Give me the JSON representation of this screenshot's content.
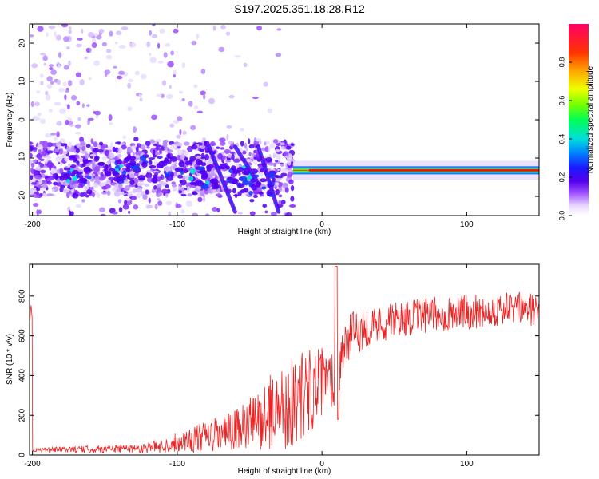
{
  "title": "S197.2025.351.18.28.R12",
  "colors": {
    "snr_line": "#ee2222",
    "axis": "#000000",
    "background": "#ffffff"
  },
  "chart_data": [
    {
      "type": "heatmap",
      "xlabel": "Height of straight line (km)",
      "ylabel": "Frequency (Hz)",
      "xlim": [
        -202,
        150
      ],
      "ylim": [
        -25,
        25
      ],
      "x_ticks": [
        -200,
        -100,
        0,
        100
      ],
      "y_ticks": [
        -20,
        -10,
        0,
        10,
        20
      ],
      "colorbar": {
        "label": "Normalized spectral amplitude",
        "range": [
          0,
          1
        ],
        "ticks": [
          0.0,
          0.2,
          0.4,
          0.6,
          0.8
        ],
        "tick_labels": [
          "0.0",
          "0.2",
          "0.4",
          "0.6",
          "0.8"
        ]
      },
      "features": {
        "carrier_band": {
          "x_range": [
            -20,
            150
          ],
          "frequency_hz": -13.2,
          "peak_amplitude": 1.0
        },
        "scatter_cloud": {
          "x_range": [
            -202,
            -20
          ],
          "frequency_range_hz": [
            -25,
            25
          ],
          "amplitude": 0.2
        },
        "streaks": [
          {
            "x_start": -78,
            "x_end": -60,
            "f_start": -7,
            "f_end": -24
          },
          {
            "x_start": -60,
            "x_end": -45,
            "f_start": -7,
            "f_end": -16
          },
          {
            "x_start": -44,
            "x_end": -30,
            "f_start": -7,
            "f_end": -24
          }
        ]
      }
    },
    {
      "type": "line",
      "xlabel": "Height of straight line (km)",
      "ylabel": "SNR (10 * v/v)",
      "xlim": [
        -202,
        150
      ],
      "ylim": [
        0,
        960
      ],
      "x_ticks": [
        -200,
        -100,
        0,
        100
      ],
      "y_ticks": [
        0,
        200,
        400,
        600,
        800
      ],
      "series": [
        {
          "name": "SNR",
          "x": [
            -200,
            -175,
            -150,
            -125,
            -110,
            -100,
            -80,
            -60,
            -45,
            -35,
            -25,
            -20,
            -15,
            -10,
            -5,
            0,
            5,
            9,
            10,
            11,
            13,
            20,
            30,
            40,
            50,
            60,
            70,
            80,
            90,
            100,
            110,
            120,
            130,
            140,
            150
          ],
          "y": [
            25,
            28,
            30,
            35,
            45,
            65,
            90,
            120,
            170,
            220,
            250,
            270,
            300,
            320,
            340,
            360,
            380,
            390,
            950,
            180,
            520,
            600,
            640,
            660,
            680,
            690,
            700,
            710,
            715,
            720,
            725,
            730,
            735,
            740,
            720
          ],
          "amplitude": [
            10,
            15,
            20,
            25,
            35,
            50,
            80,
            110,
            150,
            190,
            220,
            240,
            230,
            220,
            200,
            180,
            160,
            140,
            0,
            0,
            140,
            120,
            100,
            95,
            90,
            90,
            90,
            90,
            90,
            90,
            85,
            85,
            85,
            85,
            85
          ]
        }
      ]
    }
  ]
}
